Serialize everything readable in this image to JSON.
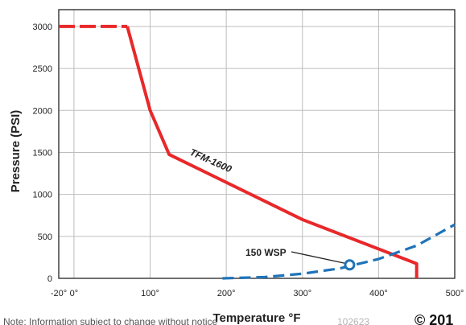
{
  "chart_data": {
    "type": "line",
    "title": "",
    "xlabel": "Temperature °F",
    "ylabel": "Pressure (PSI)",
    "xlim": [
      -20,
      500
    ],
    "ylim": [
      0,
      3200
    ],
    "x_ticks": [
      -20,
      0,
      100,
      200,
      300,
      400,
      500
    ],
    "x_tick_labels": [
      "-20°",
      "0°",
      "100°",
      "200°",
      "300°",
      "400°",
      "500°"
    ],
    "y_ticks": [
      0,
      500,
      1000,
      1500,
      2000,
      2500,
      3000
    ],
    "y_tick_labels": [
      "0",
      "500",
      "1000",
      "1500",
      "2000",
      "2500",
      "3000"
    ],
    "grid": true,
    "series": [
      {
        "name": "TFM-1600",
        "color": "#e8282a",
        "style": "solid",
        "dashed_segment": {
          "x": [
            -20,
            70
          ],
          "y": [
            3000,
            3000
          ]
        },
        "x": [
          70,
          100,
          125,
          300,
          450,
          450
        ],
        "y": [
          3000,
          2000,
          1475,
          700,
          175,
          0
        ]
      },
      {
        "name": "150 WSP",
        "color": "#1f73b8",
        "style": "dashed",
        "x": [
          195,
          250,
          300,
          350,
          400,
          450,
          500
        ],
        "y": [
          0,
          15,
          55,
          120,
          230,
          390,
          640
        ]
      }
    ],
    "annotations": [
      {
        "text": "TFM-1600",
        "series": "TFM-1600"
      },
      {
        "text": "150 WSP",
        "series": "150 WSP",
        "marker": {
          "x": 362,
          "y": 160,
          "shape": "open-circle"
        }
      }
    ]
  },
  "footer": {
    "note": "Note: Information subject to change without notice",
    "code": "102623",
    "copyright": "© 201"
  },
  "colors": {
    "tfm_series": "#e8282a",
    "wsp_series": "#1f73b8",
    "grid": "#bdbdbd",
    "axis": "#222222"
  }
}
